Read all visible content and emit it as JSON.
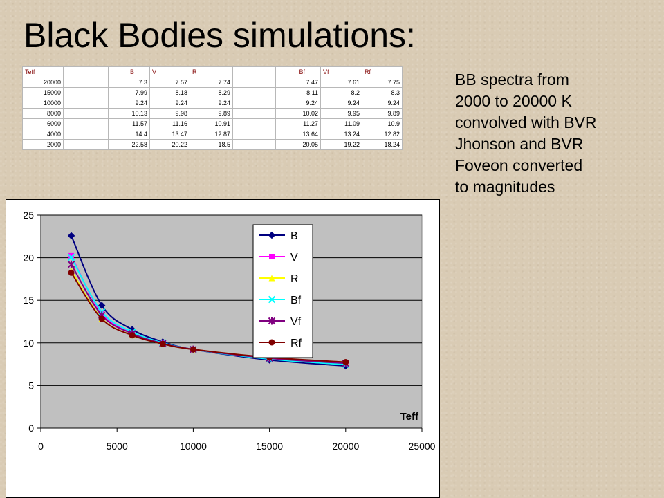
{
  "slide": {
    "title": "Black Bodies simulations:",
    "description_lines": [
      "BB spectra from",
      "2000 to 20000 K",
      "convolved with BVR",
      "Jhonson and BVR",
      "Foveon converted",
      "to magnitudes"
    ]
  },
  "table": {
    "headers": [
      "Teff",
      "",
      "B",
      "V",
      "R",
      "",
      "Bf",
      "Vf",
      "Rf"
    ],
    "rows": [
      [
        "20000",
        "",
        "7.3",
        "7.57",
        "7.74",
        "",
        "7.47",
        "7.61",
        "7.75"
      ],
      [
        "15000",
        "",
        "7.99",
        "8.18",
        "8.29",
        "",
        "8.11",
        "8.2",
        "8.3"
      ],
      [
        "10000",
        "",
        "9.24",
        "9.24",
        "9.24",
        "",
        "9.24",
        "9.24",
        "9.24"
      ],
      [
        "8000",
        "",
        "10.13",
        "9.98",
        "9.89",
        "",
        "10.02",
        "9.95",
        "9.89"
      ],
      [
        "6000",
        "",
        "11.57",
        "11.16",
        "10.91",
        "",
        "11.27",
        "11.09",
        "10.9"
      ],
      [
        "4000",
        "",
        "14.4",
        "13.47",
        "12.87",
        "",
        "13.64",
        "13.24",
        "12.82"
      ],
      [
        "2000",
        "",
        "22.58",
        "20.22",
        "18.5",
        "",
        "20.05",
        "19.22",
        "18.24"
      ]
    ]
  },
  "chart_data": {
    "type": "line",
    "title": "",
    "xlabel": "Teff",
    "ylabel": "",
    "xlim": [
      0,
      25000
    ],
    "ylim": [
      0,
      25
    ],
    "xticks": [
      0,
      5000,
      10000,
      15000,
      20000,
      25000
    ],
    "yticks": [
      0,
      5,
      10,
      15,
      20,
      25
    ],
    "grid": "horizontal",
    "legend_position": "right",
    "plot_background": "#c0c0c0",
    "x": [
      2000,
      4000,
      6000,
      8000,
      10000,
      15000,
      20000
    ],
    "series": [
      {
        "name": "B",
        "color": "#000080",
        "marker": "diamond",
        "values": [
          22.58,
          14.4,
          11.57,
          10.13,
          9.24,
          7.99,
          7.3
        ]
      },
      {
        "name": "V",
        "color": "#ff00ff",
        "marker": "square",
        "values": [
          20.22,
          13.47,
          11.16,
          9.98,
          9.24,
          8.18,
          7.57
        ]
      },
      {
        "name": "R",
        "color": "#ffff00",
        "marker": "triangle",
        "values": [
          18.5,
          12.87,
          10.91,
          9.89,
          9.24,
          8.29,
          7.74
        ]
      },
      {
        "name": "Bf",
        "color": "#00ffff",
        "marker": "x",
        "values": [
          20.05,
          13.64,
          11.27,
          10.02,
          9.24,
          8.11,
          7.47
        ]
      },
      {
        "name": "Vf",
        "color": "#800080",
        "marker": "star",
        "values": [
          19.22,
          13.24,
          11.09,
          9.95,
          9.24,
          8.2,
          7.61
        ]
      },
      {
        "name": "Rf",
        "color": "#800000",
        "marker": "circle",
        "values": [
          18.24,
          12.82,
          10.9,
          9.89,
          9.24,
          8.3,
          7.75
        ]
      }
    ]
  }
}
